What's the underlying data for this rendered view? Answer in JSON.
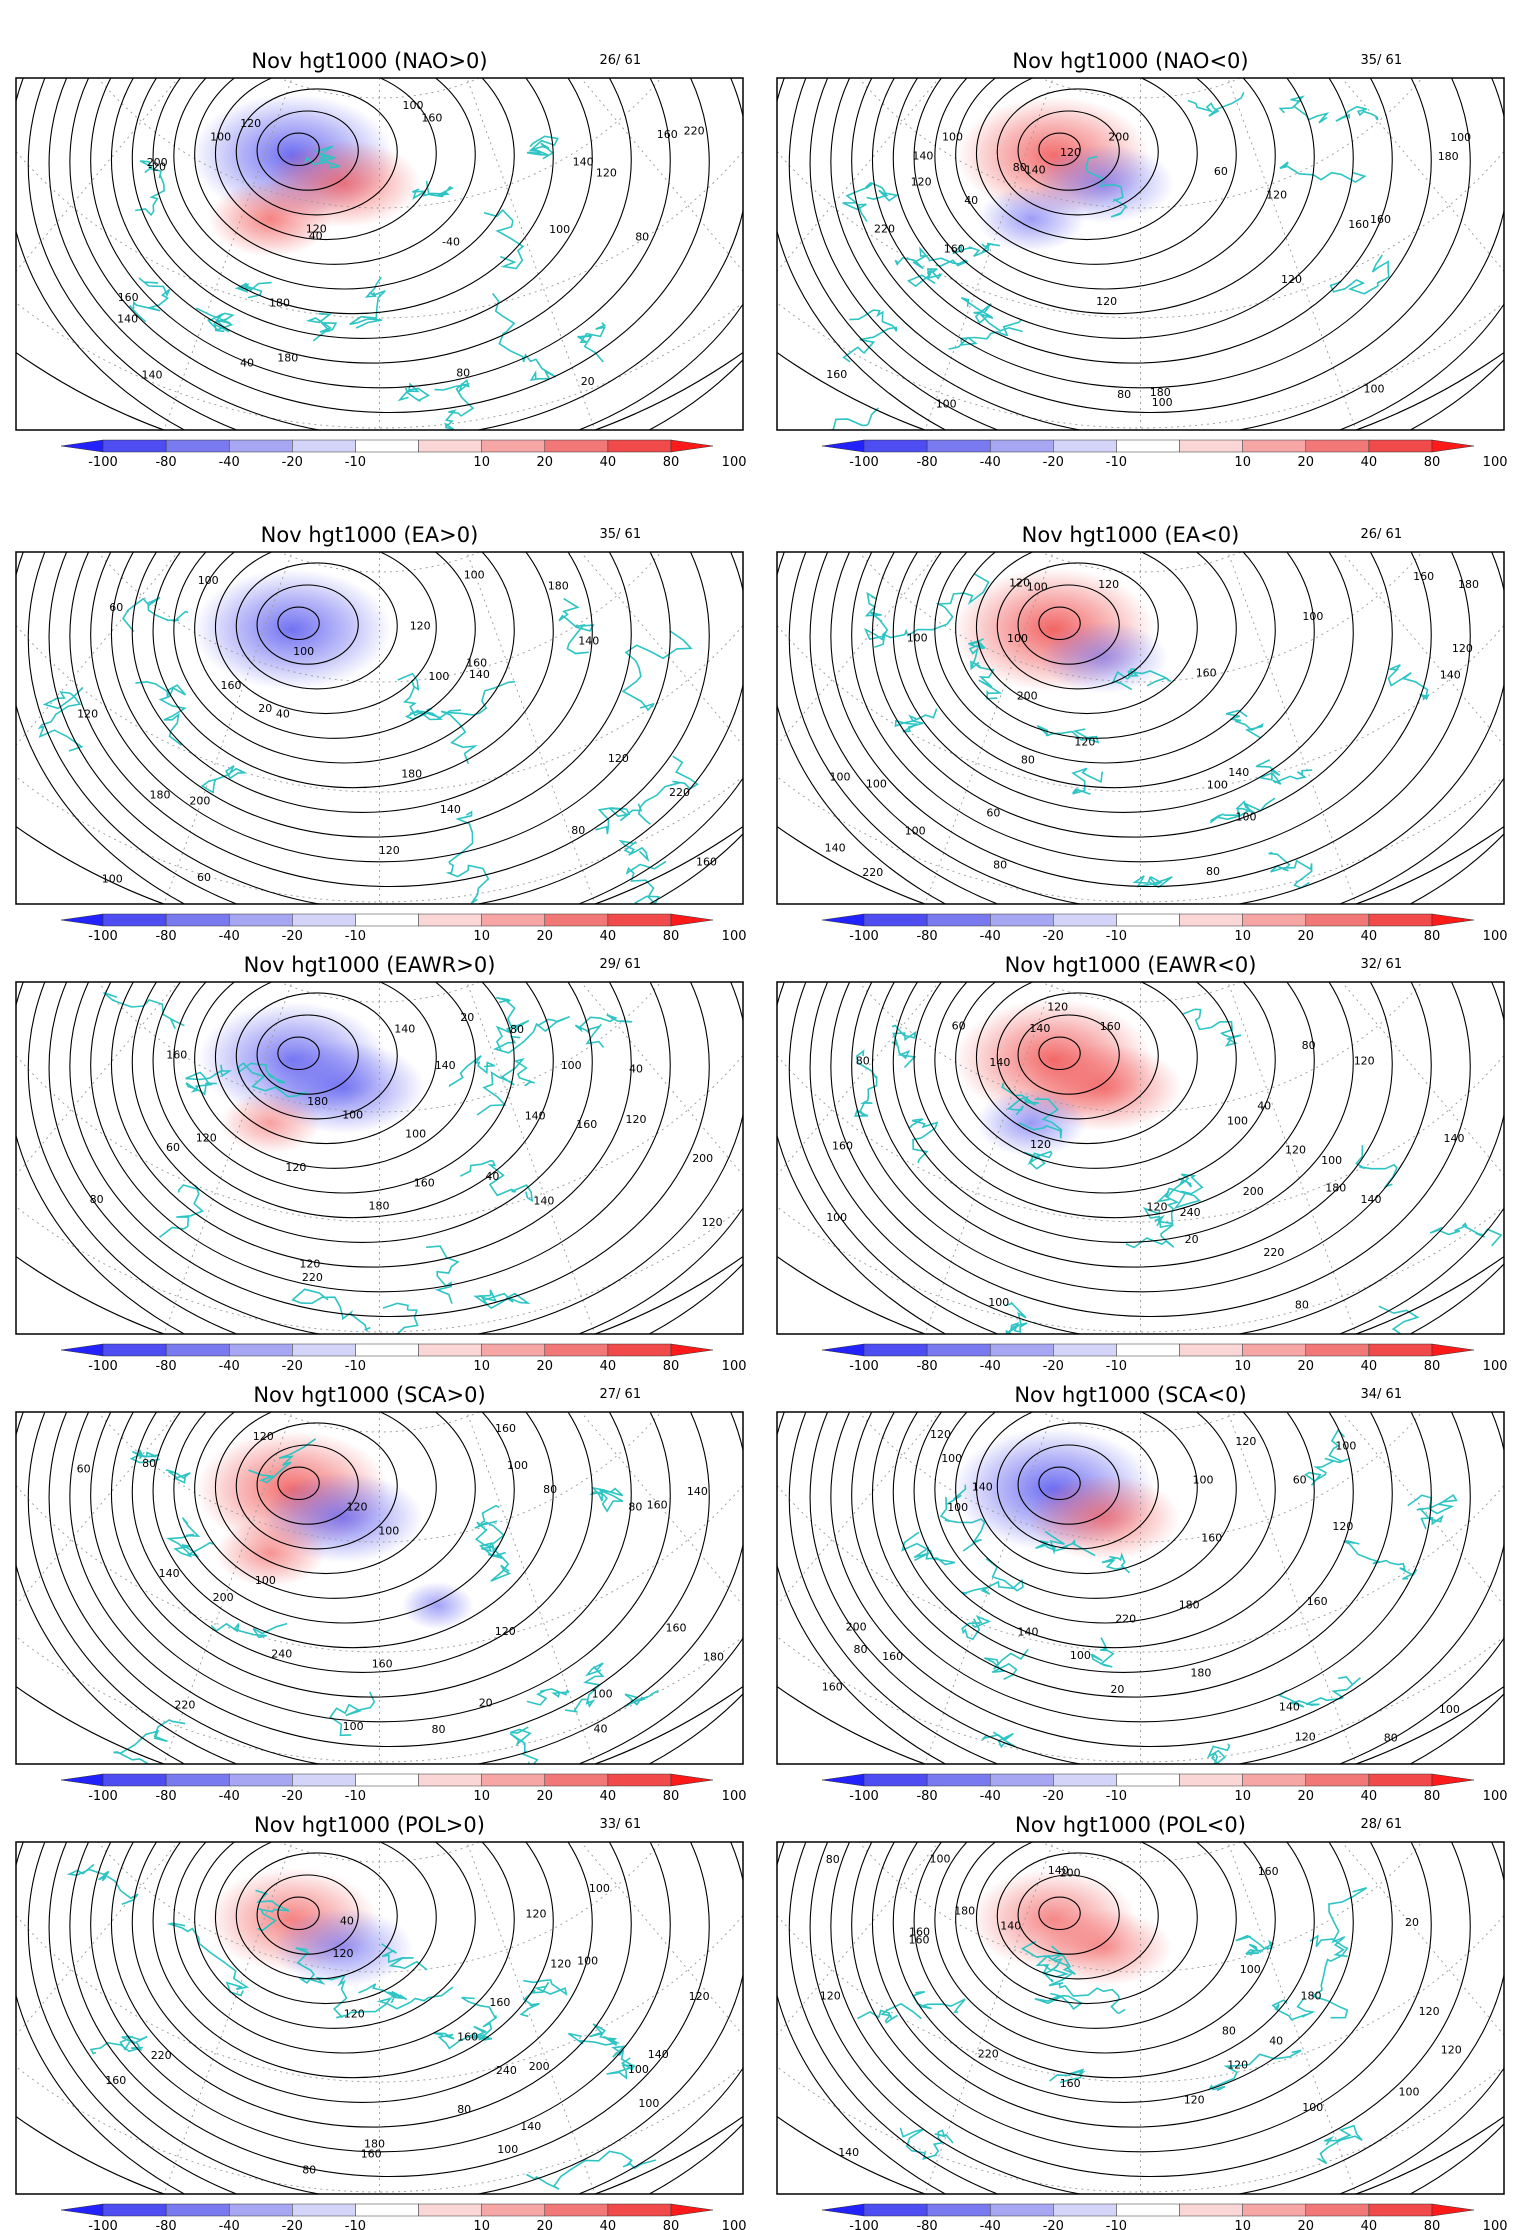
{
  "figure": {
    "month": "Nov",
    "variable": "hgt1000",
    "colorbar": {
      "labels": [
        "-100",
        "-80",
        "-40",
        "-20",
        "-10",
        "10",
        "20",
        "40",
        "80",
        "100"
      ],
      "colors": [
        "#2222ff",
        "#4d4df2",
        "#7a7af0",
        "#a6a6f2",
        "#d4d4f8",
        "#ffffff",
        "#fbd6d6",
        "#f7a6a6",
        "#f27878",
        "#f04a4a",
        "#ff1a1a"
      ]
    },
    "colors": {
      "coast": "#2ec4c4",
      "contour": "#000000",
      "grid": "#9a9a9a",
      "anomaly_positive": "#f05050",
      "anomaly_negative": "#5a5af0"
    },
    "panels": [
      {
        "title": "Nov hgt1000 (NAO>0)",
        "count": "26/ 61",
        "contour_labels": [
          "100",
          "80",
          "40",
          "20",
          "140",
          "-20",
          "-40",
          "40",
          "180",
          "160",
          "140",
          "120",
          "200",
          "220",
          "180",
          "160",
          "140",
          "120",
          "100",
          "80",
          "160",
          "120",
          "100"
        ],
        "anomalies": [
          {
            "sign": "neg",
            "strength": 0.85
          },
          {
            "sign": "pos",
            "strength": 0.55
          },
          {
            "sign": "pos",
            "strength": 0.5
          }
        ]
      },
      {
        "title": "Nov hgt1000 (NAO<0)",
        "count": "35/ 61",
        "contour_labels": [
          "100",
          "80",
          "160",
          "180",
          "120",
          "40",
          "60",
          "100",
          "120",
          "140",
          "160",
          "180",
          "200",
          "220",
          "120",
          "160",
          "100",
          "140",
          "120",
          "100",
          "160",
          "80",
          "120",
          "100"
        ],
        "anomalies": [
          {
            "sign": "pos",
            "strength": 0.75
          },
          {
            "sign": "neg",
            "strength": 0.35
          },
          {
            "sign": "neg",
            "strength": 0.25
          }
        ]
      },
      {
        "title": "Nov hgt1000 (EA>0)",
        "count": "35/ 61",
        "contour_labels": [
          "80",
          "120",
          "140",
          "60",
          "40",
          "20",
          "100",
          "60",
          "180",
          "100",
          "140",
          "160",
          "180",
          "200",
          "220",
          "180",
          "160",
          "140",
          "120",
          "100",
          "120",
          "100",
          "160",
          "120",
          "100"
        ],
        "anomalies": [
          {
            "sign": "neg",
            "strength": 0.8
          }
        ]
      },
      {
        "title": "Nov hgt1000 (EA<0)",
        "count": "26/ 61",
        "contour_labels": [
          "100",
          "80",
          "60",
          "160",
          "140",
          "120",
          "100",
          "120",
          "140",
          "160",
          "180",
          "200",
          "220",
          "100",
          "100",
          "120",
          "80",
          "100",
          "140",
          "120",
          "80",
          "100",
          "100",
          "100",
          "100"
        ],
        "anomalies": [
          {
            "sign": "pos",
            "strength": 0.85
          },
          {
            "sign": "neg",
            "strength": 0.2
          }
        ]
      },
      {
        "title": "Nov  hgt1000 (EAWR>0)",
        "count": "29/ 61",
        "contour_labels": [
          "120",
          "60",
          "40",
          "20",
          "140",
          "180",
          "40",
          "120",
          "140",
          "160",
          "180",
          "200",
          "220",
          "100",
          "160",
          "140",
          "120",
          "100",
          "160",
          "140",
          "120",
          "80",
          "120",
          "100",
          "80"
        ],
        "anomalies": [
          {
            "sign": "neg",
            "strength": 0.7
          },
          {
            "sign": "neg",
            "strength": 0.65
          },
          {
            "sign": "pos",
            "strength": 0.15
          }
        ]
      },
      {
        "title": "Nov hgt1000 (EAWR<0)",
        "count": "32/ 61",
        "contour_labels": [
          "100",
          "80",
          "120",
          "140",
          "60",
          "20",
          "40",
          "100",
          "140",
          "160",
          "180",
          "200",
          "220",
          "240",
          "120",
          "100",
          "160",
          "140",
          "120",
          "80",
          "120",
          "140",
          "120",
          "80",
          "100"
        ],
        "anomalies": [
          {
            "sign": "pos",
            "strength": 0.8
          },
          {
            "sign": "pos",
            "strength": 0.55
          },
          {
            "sign": "neg",
            "strength": 0.3
          }
        ]
      },
      {
        "title": "Nov hgt1000 (SCA>0)",
        "count": "27/ 61",
        "contour_labels": [
          "160",
          "100",
          "80",
          "60",
          "40",
          "20",
          "100",
          "120",
          "160",
          "200",
          "220",
          "240",
          "180",
          "160",
          "140",
          "120",
          "100",
          "80",
          "160",
          "140",
          "120",
          "80",
          "100",
          "80",
          "100"
        ],
        "anomalies": [
          {
            "sign": "pos",
            "strength": 0.75
          },
          {
            "sign": "neg",
            "strength": 0.6
          },
          {
            "sign": "pos",
            "strength": 0.3
          },
          {
            "sign": "neg",
            "strength": 0.2
          }
        ]
      },
      {
        "title": "Nov hgt1000 (SCA<0)",
        "count": "34/ 61",
        "contour_labels": [
          "100",
          "80",
          "160",
          "60",
          "20",
          "120",
          "140",
          "180",
          "200",
          "220",
          "100",
          "160",
          "140",
          "120",
          "100",
          "160",
          "180",
          "140",
          "120",
          "100",
          "120",
          "100",
          "80",
          "160",
          "100"
        ],
        "anomalies": [
          {
            "sign": "neg",
            "strength": 0.85
          },
          {
            "sign": "pos",
            "strength": 0.5
          }
        ]
      },
      {
        "title": "Nov hgt1000 (POL>0)",
        "count": "33/ 61",
        "contour_labels": [
          "160",
          "120",
          "80",
          "40",
          "160",
          "100",
          "200",
          "180",
          "220",
          "240",
          "120",
          "100",
          "160",
          "140",
          "120",
          "100",
          "80",
          "120",
          "100",
          "120",
          "100",
          "140",
          "160"
        ],
        "anomalies": [
          {
            "sign": "pos",
            "strength": 0.5
          },
          {
            "sign": "neg",
            "strength": 0.35
          }
        ]
      },
      {
        "title": "Nov hgt1000 (POL<0)",
        "count": "28/ 61",
        "contour_labels": [
          "100",
          "80",
          "120",
          "160",
          "40",
          "20",
          "180",
          "200",
          "220",
          "100",
          "160",
          "140",
          "120",
          "140",
          "120",
          "100",
          "160",
          "180",
          "120",
          "100",
          "80",
          "120",
          "140",
          "160"
        ],
        "anomalies": [
          {
            "sign": "pos",
            "strength": 0.45
          },
          {
            "sign": "pos",
            "strength": 0.3
          }
        ]
      }
    ]
  }
}
